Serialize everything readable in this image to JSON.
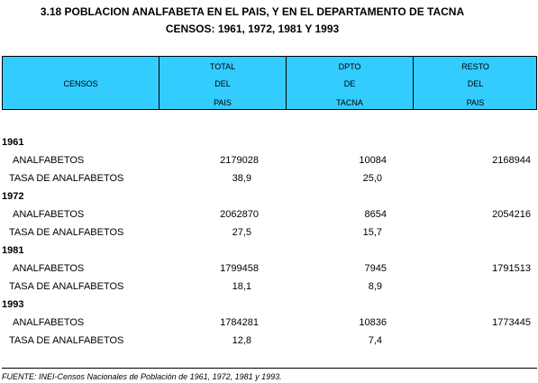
{
  "title": {
    "line1": "3.18  POBLACION ANALFABETA EN EL PAIS, Y EN EL DEPARTAMENTO DE TACNA",
    "line2": "CENSOS: 1961, 1972, 1981 Y 1993"
  },
  "table": {
    "columns": [
      [
        "CENSOS"
      ],
      [
        "TOTAL",
        "DEL",
        "PAIS"
      ],
      [
        "DPTO",
        "DE",
        "TACNA"
      ],
      [
        "RESTO",
        "DEL",
        "PAIS"
      ]
    ],
    "groups": [
      {
        "year": "1961",
        "rows": [
          {
            "label": "ANALFABETOS",
            "cells": [
              2179028,
              10084,
              2168944
            ]
          },
          {
            "label": "TASA DE ANALFABETOS",
            "cells": [
              "38,9",
              "25,0"
            ]
          }
        ]
      },
      {
        "year": "1972",
        "rows": [
          {
            "label": "ANALFABETOS",
            "cells": [
              2062870,
              8654,
              2054216
            ]
          },
          {
            "label": "TASA DE ANALFABETOS",
            "cells": [
              "27,5",
              "15,7"
            ]
          }
        ]
      },
      {
        "year": "1981",
        "rows": [
          {
            "label": "ANALFABETOS",
            "cells": [
              1799458,
              7945,
              1791513
            ]
          },
          {
            "label": "TASA DE ANALFABETOS",
            "cells": [
              "18,1",
              "8,9"
            ]
          }
        ]
      },
      {
        "year": "1993",
        "rows": [
          {
            "label": "ANALFABETOS",
            "cells": [
              1784281,
              10836,
              1773445
            ]
          },
          {
            "label": "TASA DE ANALFABETOS",
            "cells": [
              "12,8",
              "7,4"
            ]
          }
        ]
      }
    ]
  },
  "footer": "FUENTE: INEI-Censos Nacionales de Población de 1961, 1972, 1981 y 1993."
}
